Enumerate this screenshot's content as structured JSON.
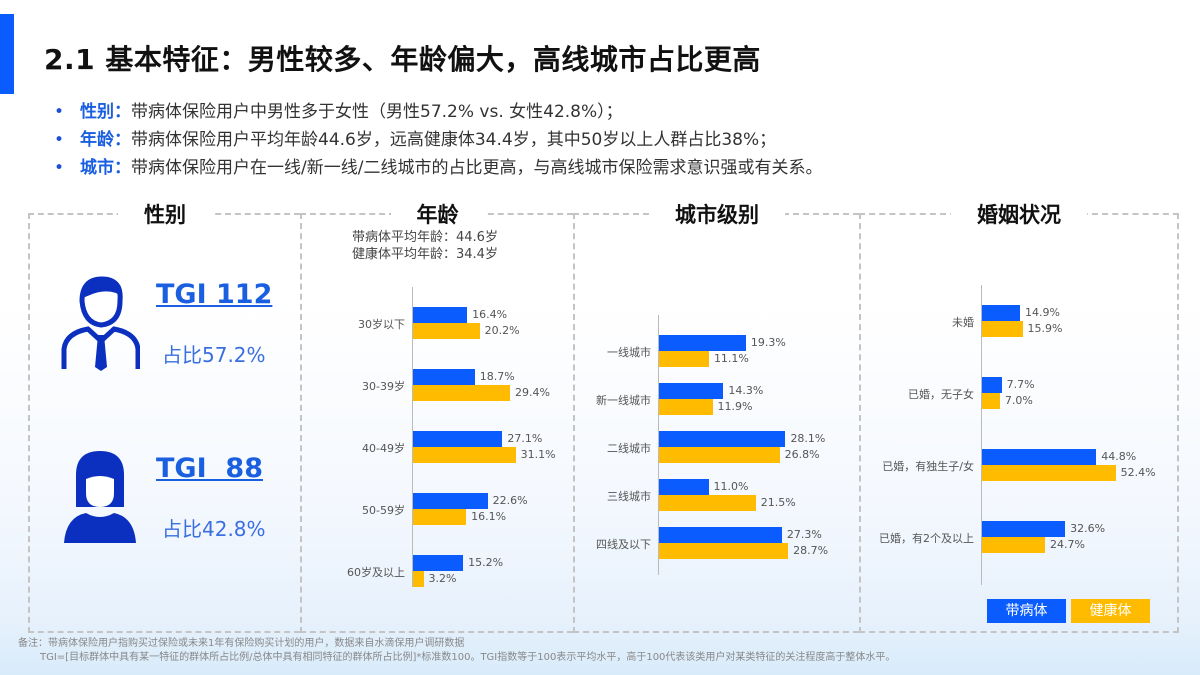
{
  "header": {
    "title": "2.1 基本特征：男性较多、年龄偏大，高线城市占比更高",
    "accent_color": "#0a5cff"
  },
  "bullets": [
    {
      "key": "性别：",
      "text": "带病体保险用户中男性多于女性（男性57.2% vs. 女性42.8%）；"
    },
    {
      "key": "年龄：",
      "text": "带病体保险用户平均年龄44.6岁，远高健康体34.4岁，其中50岁以上人群占比38%；"
    },
    {
      "key": "城市：",
      "text": "带病体保险用户在一线/新一线/二线城市的占比更高，与高线城市保险需求意识强或有关系。"
    }
  ],
  "panels": {
    "gender": {
      "title": "性别",
      "male": {
        "tgi": "TGI 112",
        "share": "占比57.2%"
      },
      "female": {
        "tgi": "TGI  88",
        "share": "占比42.8%"
      }
    },
    "age": {
      "title": "年龄",
      "avg_disease": "带病体平均年龄：44.6岁",
      "avg_healthy": "健康体平均年龄：34.4岁"
    },
    "city": {
      "title": "城市级别"
    },
    "marital": {
      "title": "婚姻状况"
    }
  },
  "legend": {
    "disease": "带病体",
    "healthy": "健康体",
    "disease_color": "#0a5cff",
    "healthy_color": "#ffbb00"
  },
  "footnote": {
    "line1": "备注：带病体保险用户指购买过保险或未来1年有保险购买计划的用户，数据来自水滴保用户调研数据",
    "line2": "TGI=[目标群体中具有某一特征的群体所占比例/总体中具有相同特征的群体所占比例]*标准数100。TGI指数等于100表示平均水平，高于100代表该类用户对某类特征的关注程度高于整体水平。"
  },
  "chart_data": [
    {
      "type": "bar",
      "orientation": "horizontal",
      "title": "年龄",
      "categories": [
        "30岁以下",
        "30-39岁",
        "40-49岁",
        "50-59岁",
        "60岁及以上"
      ],
      "series": [
        {
          "name": "带病体",
          "values": [
            16.4,
            18.7,
            27.1,
            22.6,
            15.2
          ]
        },
        {
          "name": "健康体",
          "values": [
            20.2,
            29.4,
            31.1,
            16.1,
            3.2
          ]
        }
      ],
      "unit": "%"
    },
    {
      "type": "bar",
      "orientation": "horizontal",
      "title": "城市级别",
      "categories": [
        "一线城市",
        "新一线城市",
        "二线城市",
        "三线城市",
        "四线及以下"
      ],
      "series": [
        {
          "name": "带病体",
          "values": [
            19.3,
            14.3,
            28.1,
            11.0,
            27.3
          ]
        },
        {
          "name": "健康体",
          "values": [
            11.1,
            11.9,
            26.8,
            21.5,
            28.7
          ]
        }
      ],
      "unit": "%"
    },
    {
      "type": "bar",
      "orientation": "horizontal",
      "title": "婚姻状况",
      "categories": [
        "未婚",
        "已婚，无子女",
        "已婚，有独生子/女",
        "已婚，有2个及以上"
      ],
      "series": [
        {
          "name": "带病体",
          "values": [
            14.9,
            7.7,
            44.8,
            32.6
          ]
        },
        {
          "name": "健康体",
          "values": [
            15.9,
            7.0,
            52.4,
            24.7
          ]
        }
      ],
      "unit": "%",
      "legend": [
        "带病体",
        "健康体"
      ],
      "legend_position": "bottom-right"
    }
  ]
}
